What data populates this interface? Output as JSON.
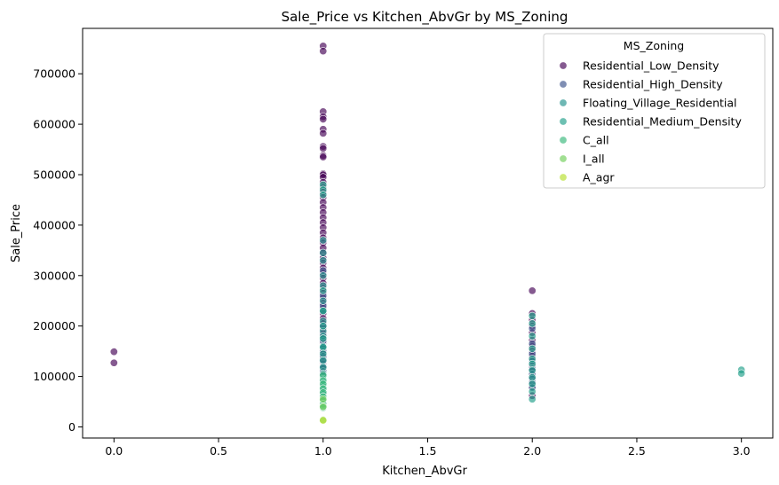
{
  "chart_data": {
    "type": "scatter",
    "title": "Sale_Price vs Kitchen_AbvGr by MS_Zoning",
    "xlabel": "Kitchen_AbvGr",
    "ylabel": "Sale_Price",
    "xlim": [
      -0.15,
      3.15
    ],
    "ylim": [
      -22000,
      790000
    ],
    "xticks": [
      0.0,
      0.5,
      1.0,
      1.5,
      2.0,
      2.5,
      3.0
    ],
    "xtick_labels": [
      "0.0",
      "0.5",
      "1.0",
      "1.5",
      "2.0",
      "2.5",
      "3.0"
    ],
    "yticks": [
      0,
      100000,
      200000,
      300000,
      400000,
      500000,
      600000,
      700000
    ],
    "ytick_labels": [
      "0",
      "100000",
      "200000",
      "300000",
      "400000",
      "500000",
      "600000",
      "700000"
    ],
    "grid": false,
    "legend_title": "MS_Zoning",
    "legend_position": "top-right",
    "point_alpha": 0.65,
    "series": [
      {
        "name": "Residential_Low_Density",
        "color": "#440154",
        "points": [
          [
            0,
            149000
          ],
          [
            0,
            127000
          ],
          [
            1,
            755000
          ],
          [
            1,
            745000
          ],
          [
            1,
            625000
          ],
          [
            1,
            615000
          ],
          [
            1,
            610000
          ],
          [
            1,
            590000
          ],
          [
            1,
            582000
          ],
          [
            1,
            556000
          ],
          [
            1,
            552000
          ],
          [
            1,
            538000
          ],
          [
            1,
            535000
          ],
          [
            1,
            502000
          ],
          [
            1,
            500000
          ],
          [
            1,
            495000
          ],
          [
            1,
            485000
          ],
          [
            1,
            475000
          ],
          [
            1,
            465000
          ],
          [
            1,
            455000
          ],
          [
            1,
            445000
          ],
          [
            1,
            435000
          ],
          [
            1,
            425000
          ],
          [
            1,
            415000
          ],
          [
            1,
            405000
          ],
          [
            1,
            395000
          ],
          [
            1,
            385000
          ],
          [
            1,
            375000
          ],
          [
            1,
            365000
          ],
          [
            1,
            355000
          ],
          [
            1,
            345000
          ],
          [
            1,
            335000
          ],
          [
            1,
            325000
          ],
          [
            1,
            315000
          ],
          [
            1,
            305000
          ],
          [
            1,
            295000
          ],
          [
            1,
            285000
          ],
          [
            1,
            275000
          ],
          [
            1,
            265000
          ],
          [
            1,
            255000
          ],
          [
            1,
            245000
          ],
          [
            1,
            235000
          ],
          [
            1,
            225000
          ],
          [
            1,
            215000
          ],
          [
            1,
            205000
          ],
          [
            1,
            195000
          ],
          [
            1,
            185000
          ],
          [
            1,
            175000
          ],
          [
            1,
            165000
          ],
          [
            1,
            155000
          ],
          [
            1,
            145000
          ],
          [
            1,
            135000
          ],
          [
            1,
            125000
          ],
          [
            1,
            115000
          ],
          [
            1,
            105000
          ],
          [
            2,
            270000
          ],
          [
            2,
            225000
          ],
          [
            2,
            212000
          ],
          [
            2,
            200000
          ],
          [
            2,
            187000
          ],
          [
            2,
            172000
          ],
          [
            2,
            160000
          ],
          [
            2,
            150000
          ],
          [
            2,
            140000
          ],
          [
            2,
            132000
          ],
          [
            2,
            120000
          ],
          [
            2,
            110000
          ],
          [
            2,
            100000
          ],
          [
            2,
            90000
          ],
          [
            2,
            80000
          ],
          [
            2,
            62000
          ]
        ]
      },
      {
        "name": "Residential_High_Density",
        "color": "#3b528b",
        "points": [
          [
            1,
            310000
          ],
          [
            1,
            260000
          ],
          [
            1,
            240000
          ],
          [
            1,
            200000
          ],
          [
            1,
            170000
          ],
          [
            1,
            150000
          ],
          [
            1,
            140000
          ],
          [
            1,
            130000
          ],
          [
            1,
            120000
          ],
          [
            1,
            110000
          ],
          [
            2,
            195000
          ],
          [
            2,
            165000
          ],
          [
            2,
            145000
          ],
          [
            2,
            130000
          ],
          [
            2,
            115000
          ],
          [
            2,
            105000
          ],
          [
            2,
            95000
          ],
          [
            2,
            88000
          ],
          [
            2,
            78000
          ]
        ]
      },
      {
        "name": "Floating_Village_Residential",
        "color": "#21918c",
        "points": [
          [
            1,
            370000
          ],
          [
            1,
            345000
          ],
          [
            1,
            330000
          ],
          [
            1,
            300000
          ],
          [
            1,
            280000
          ],
          [
            1,
            250000
          ],
          [
            1,
            230000
          ],
          [
            1,
            210000
          ],
          [
            1,
            190000
          ],
          [
            1,
            180000
          ],
          [
            1,
            160000
          ]
        ]
      },
      {
        "name": "Residential_Medium_Density",
        "color": "#1f9e89",
        "points": [
          [
            1,
            480000
          ],
          [
            1,
            470000
          ],
          [
            1,
            460000
          ],
          [
            1,
            270000
          ],
          [
            1,
            230000
          ],
          [
            1,
            200000
          ],
          [
            1,
            175000
          ],
          [
            1,
            158000
          ],
          [
            1,
            145000
          ],
          [
            1,
            132000
          ],
          [
            1,
            118000
          ],
          [
            1,
            105000
          ],
          [
            1,
            95000
          ],
          [
            1,
            88000
          ],
          [
            1,
            80000
          ],
          [
            1,
            72000
          ],
          [
            1,
            65000
          ],
          [
            2,
            220000
          ],
          [
            2,
            205000
          ],
          [
            2,
            180000
          ],
          [
            2,
            155000
          ],
          [
            2,
            135000
          ],
          [
            2,
            125000
          ],
          [
            2,
            112000
          ],
          [
            2,
            98000
          ],
          [
            2,
            85000
          ],
          [
            2,
            70000
          ],
          [
            2,
            55000
          ],
          [
            3,
            113000
          ],
          [
            3,
            106000
          ]
        ]
      },
      {
        "name": "C_all",
        "color": "#35b779",
        "points": [
          [
            1,
            102000
          ],
          [
            1,
            92000
          ],
          [
            1,
            85000
          ],
          [
            1,
            76000
          ],
          [
            1,
            68000
          ],
          [
            1,
            60000
          ],
          [
            1,
            52000
          ],
          [
            1,
            45000
          ],
          [
            1,
            38000
          ]
        ]
      },
      {
        "name": "I_all",
        "color": "#6ece58",
        "points": [
          [
            1,
            55000
          ],
          [
            1,
            40000
          ],
          [
            1,
            14000
          ]
        ]
      },
      {
        "name": "A_agr",
        "color": "#b5de2b",
        "points": [
          [
            1,
            13000
          ]
        ]
      }
    ]
  }
}
